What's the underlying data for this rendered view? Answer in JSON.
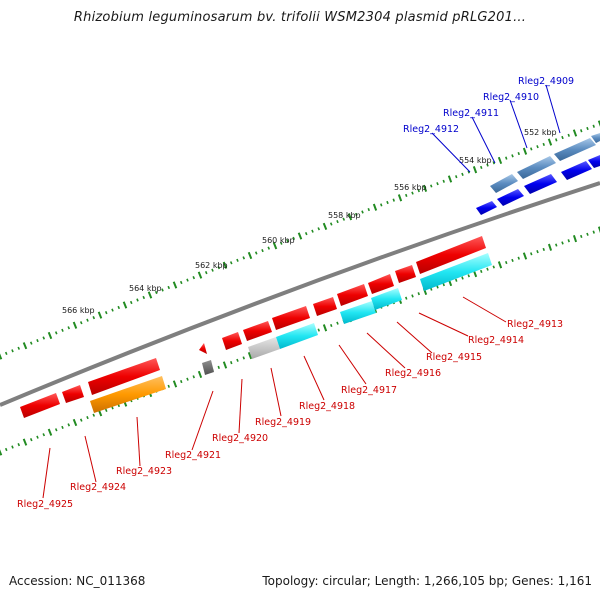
{
  "title": "Rhizobium leguminosarum bv. trifolii WSM2304 plasmid pRLG201...",
  "footer": {
    "accession": "Accession: NC_011368",
    "summary": "Topology: circular; Length: 1,266,105 bp; Genes: 1,161"
  },
  "colors": {
    "forward_label": "#0000cc",
    "reverse_label": "#cc0000",
    "ruler_ticks": "#228b22",
    "backbone": "#7f7f7f"
  },
  "ruler_labels": [
    "552 kbp",
    "554 kbp",
    "556 kbp",
    "558 kbp",
    "560 kbp",
    "562 kbp",
    "564 kbp",
    "566 kbp"
  ],
  "forward_genes": [
    "Rleg2_4909",
    "Rleg2_4910",
    "Rleg2_4911",
    "Rleg2_4912"
  ],
  "reverse_genes": [
    "Rleg2_4913",
    "Rleg2_4914",
    "Rleg2_4915",
    "Rleg2_4916",
    "Rleg2_4917",
    "Rleg2_4918",
    "Rleg2_4919",
    "Rleg2_4920",
    "Rleg2_4921",
    "Rleg2_4923",
    "Rleg2_4924",
    "Rleg2_4925"
  ]
}
